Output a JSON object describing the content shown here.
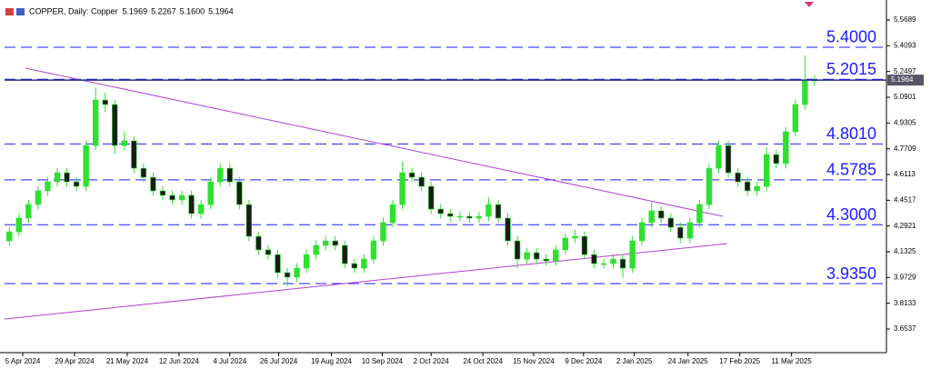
{
  "chart_data": {
    "type": "candlestick",
    "title": "COPPER, Daily: Copper",
    "quote": [
      "5.1969",
      "5.2267",
      "5.1600",
      "5.1964"
    ],
    "up_color": "#2fe02f",
    "down_color": "#1a1a1a",
    "level_color": "#1a1aff",
    "trend_color": "#b040d0",
    "last_price": 5.1964,
    "xlim": [
      0,
      92
    ],
    "ylim": [
      3.5072,
      5.6647
    ],
    "yticks": [
      5.5689,
      5.4093,
      5.2497,
      5.0901,
      4.9305,
      4.7709,
      4.6113,
      4.4517,
      4.2921,
      4.1325,
      3.9729,
      3.8133,
      3.6537
    ],
    "xticks": [
      {
        "value": 1.9,
        "label": "5 Apr 2024"
      },
      {
        "value": 7.3,
        "label": "29 Apr 2024"
      },
      {
        "value": 12.8,
        "label": "21 May 2024"
      },
      {
        "value": 18.2,
        "label": "12 Jun 2024"
      },
      {
        "value": 23.5,
        "label": "4 Jul 2024"
      },
      {
        "value": 28.6,
        "label": "26 Jul 2024"
      },
      {
        "value": 34.1,
        "label": "19 Aug 2024"
      },
      {
        "value": 39.4,
        "label": "10 Sep 2024"
      },
      {
        "value": 44.5,
        "label": "2 Oct 2024"
      },
      {
        "value": 49.9,
        "label": "24 Oct 2024"
      },
      {
        "value": 55.2,
        "label": "15 Nov 2024"
      },
      {
        "value": 60.4,
        "label": "9 Dec 2024"
      },
      {
        "value": 65.7,
        "label": "2 Jan 2025"
      },
      {
        "value": 71.3,
        "label": "24 Jan 2025"
      },
      {
        "value": 76.7,
        "label": "17 Feb 2025"
      },
      {
        "value": 82.1,
        "label": "11 Mar 2025"
      }
    ],
    "levels": [
      {
        "value": 5.4,
        "label": "5.4000"
      },
      5.2015,
      {
        "value": 4.801,
        "label": "4.8010"
      },
      4.5785,
      {
        "value": 4.3,
        "label": "4.3000"
      },
      {
        "value": 3.935,
        "label": "3.9350"
      }
    ],
    "trendlines": [
      [
        [
          2.18,
          5.2703
        ],
        [
          74.95,
          4.352
        ]
      ],
      [
        [
          0,
          3.7154
        ],
        [
          75.4,
          4.183
        ]
      ]
    ],
    "candles": [
      [
        4.2,
        4.286,
        4.17,
        4.256
      ],
      [
        4.256,
        4.371,
        4.226,
        4.341
      ],
      [
        4.341,
        4.455,
        4.311,
        4.425
      ],
      [
        4.425,
        4.54,
        4.395,
        4.51
      ],
      [
        4.51,
        4.596,
        4.48,
        4.566
      ],
      [
        4.566,
        4.652,
        4.536,
        4.622
      ],
      [
        4.622,
        4.652,
        4.536,
        4.566
      ],
      [
        4.566,
        4.596,
        4.508,
        4.538
      ],
      [
        4.538,
        4.821,
        4.508,
        4.791
      ],
      [
        4.791,
        5.15,
        4.761,
        5.073
      ],
      [
        5.073,
        5.12,
        5.0,
        5.045
      ],
      [
        5.045,
        5.075,
        4.74,
        4.791
      ],
      [
        4.791,
        4.88,
        4.761,
        4.82
      ],
      [
        4.82,
        4.85,
        4.62,
        4.65
      ],
      [
        4.65,
        4.68,
        4.564,
        4.594
      ],
      [
        4.594,
        4.624,
        4.48,
        4.51
      ],
      [
        4.51,
        4.54,
        4.452,
        4.482
      ],
      [
        4.482,
        4.512,
        4.424,
        4.454
      ],
      [
        4.454,
        4.512,
        4.424,
        4.482
      ],
      [
        4.482,
        4.512,
        4.339,
        4.369
      ],
      [
        4.369,
        4.455,
        4.339,
        4.425
      ],
      [
        4.425,
        4.596,
        4.395,
        4.566
      ],
      [
        4.566,
        4.68,
        4.536,
        4.65
      ],
      [
        4.65,
        4.68,
        4.536,
        4.566
      ],
      [
        4.566,
        4.596,
        4.395,
        4.425
      ],
      [
        4.425,
        4.455,
        4.198,
        4.228
      ],
      [
        4.228,
        4.258,
        4.114,
        4.144
      ],
      [
        4.144,
        4.174,
        4.085,
        4.115
      ],
      [
        4.115,
        4.145,
        3.973,
        4.003
      ],
      [
        4.003,
        4.033,
        3.92,
        3.975
      ],
      [
        3.975,
        4.061,
        3.945,
        4.031
      ],
      [
        4.031,
        4.145,
        4.001,
        4.115
      ],
      [
        4.115,
        4.202,
        4.085,
        4.172
      ],
      [
        4.172,
        4.23,
        4.142,
        4.2
      ],
      [
        4.2,
        4.23,
        4.142,
        4.172
      ],
      [
        4.172,
        4.202,
        4.029,
        4.059
      ],
      [
        4.059,
        4.089,
        4.001,
        4.031
      ],
      [
        4.031,
        4.117,
        4.001,
        4.087
      ],
      [
        4.087,
        4.23,
        4.057,
        4.2
      ],
      [
        4.2,
        4.343,
        4.17,
        4.313
      ],
      [
        4.313,
        4.455,
        4.283,
        4.425
      ],
      [
        4.425,
        4.69,
        4.395,
        4.622
      ],
      [
        4.622,
        4.652,
        4.564,
        4.594
      ],
      [
        4.594,
        4.624,
        4.508,
        4.538
      ],
      [
        4.538,
        4.568,
        4.367,
        4.397
      ],
      [
        4.397,
        4.427,
        4.339,
        4.369
      ],
      [
        4.369,
        4.399,
        4.322,
        4.352
      ],
      [
        4.352,
        4.382,
        4.322,
        4.352
      ],
      [
        4.352,
        4.382,
        4.311,
        4.341
      ],
      [
        4.341,
        4.382,
        4.311,
        4.352
      ],
      [
        4.352,
        4.47,
        4.322,
        4.425
      ],
      [
        4.425,
        4.455,
        4.311,
        4.341
      ],
      [
        4.341,
        4.371,
        4.17,
        4.2
      ],
      [
        4.2,
        4.23,
        4.03,
        4.087
      ],
      [
        4.087,
        4.157,
        4.057,
        4.127
      ],
      [
        4.127,
        4.157,
        4.057,
        4.087
      ],
      [
        4.087,
        4.117,
        4.046,
        4.076
      ],
      [
        4.076,
        4.174,
        4.046,
        4.144
      ],
      [
        4.144,
        4.247,
        4.114,
        4.217
      ],
      [
        4.217,
        4.27,
        4.187,
        4.228
      ],
      [
        4.228,
        4.258,
        4.085,
        4.115
      ],
      [
        4.115,
        4.145,
        4.029,
        4.059
      ],
      [
        4.059,
        4.089,
        4.029,
        4.059
      ],
      [
        4.059,
        4.117,
        4.029,
        4.087
      ],
      [
        4.087,
        4.117,
        3.97,
        4.031
      ],
      [
        4.031,
        4.23,
        4.001,
        4.2
      ],
      [
        4.2,
        4.343,
        4.17,
        4.313
      ],
      [
        4.313,
        4.44,
        4.283,
        4.386
      ],
      [
        4.386,
        4.416,
        4.311,
        4.341
      ],
      [
        4.341,
        4.371,
        4.254,
        4.284
      ],
      [
        4.284,
        4.314,
        4.187,
        4.217
      ],
      [
        4.217,
        4.343,
        4.187,
        4.313
      ],
      [
        4.313,
        4.455,
        4.283,
        4.425
      ],
      [
        4.425,
        4.68,
        4.395,
        4.65
      ],
      [
        4.65,
        4.821,
        4.62,
        4.791
      ],
      [
        4.791,
        4.821,
        4.592,
        4.622
      ],
      [
        4.622,
        4.652,
        4.536,
        4.566
      ],
      [
        4.566,
        4.596,
        4.48,
        4.51
      ],
      [
        4.51,
        4.568,
        4.48,
        4.538
      ],
      [
        4.538,
        4.78,
        4.508,
        4.735
      ],
      [
        4.735,
        4.765,
        4.649,
        4.679
      ],
      [
        4.679,
        4.906,
        4.649,
        4.876
      ],
      [
        4.876,
        5.075,
        4.846,
        5.045
      ],
      [
        5.045,
        5.35,
        5.015,
        5.197
      ],
      [
        5.1969,
        5.2267,
        5.16,
        5.1964
      ]
    ]
  }
}
